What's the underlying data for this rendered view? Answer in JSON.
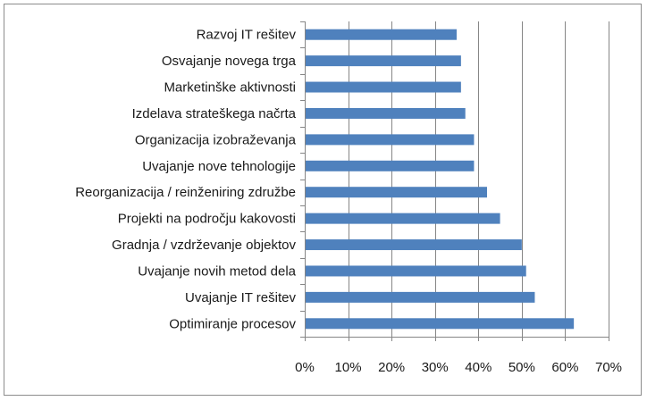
{
  "chart_data": {
    "type": "bar",
    "orientation": "horizontal",
    "categories": [
      "Razvoj IT rešitev",
      "Osvajanje novega trga",
      "Marketinške aktivnosti",
      "Izdelava strateškega načrta",
      "Organizacija izobraževanja",
      "Uvajanje nove tehnologije",
      "Reorganizacija / reinženiring združbe",
      "Projekti na področju kakovosti",
      "Gradnja / vzdrževanje objektov",
      "Uvajanje novih metod dela",
      "Uvajanje IT rešitev",
      "Optimiranje procesov"
    ],
    "values": [
      35,
      36,
      36,
      37,
      39,
      39,
      42,
      45,
      50,
      51,
      53,
      62
    ],
    "xlim": [
      0,
      70
    ],
    "xticks": [
      0,
      10,
      20,
      30,
      40,
      50,
      60,
      70
    ],
    "xtick_labels": [
      "0%",
      "10%",
      "20%",
      "30%",
      "40%",
      "50%",
      "60%",
      "70%"
    ],
    "grid": "vertical",
    "legend": "none",
    "title": "",
    "xlabel": "",
    "ylabel": "",
    "bar_color": "#4f81bd",
    "grid_color": "#868686"
  }
}
